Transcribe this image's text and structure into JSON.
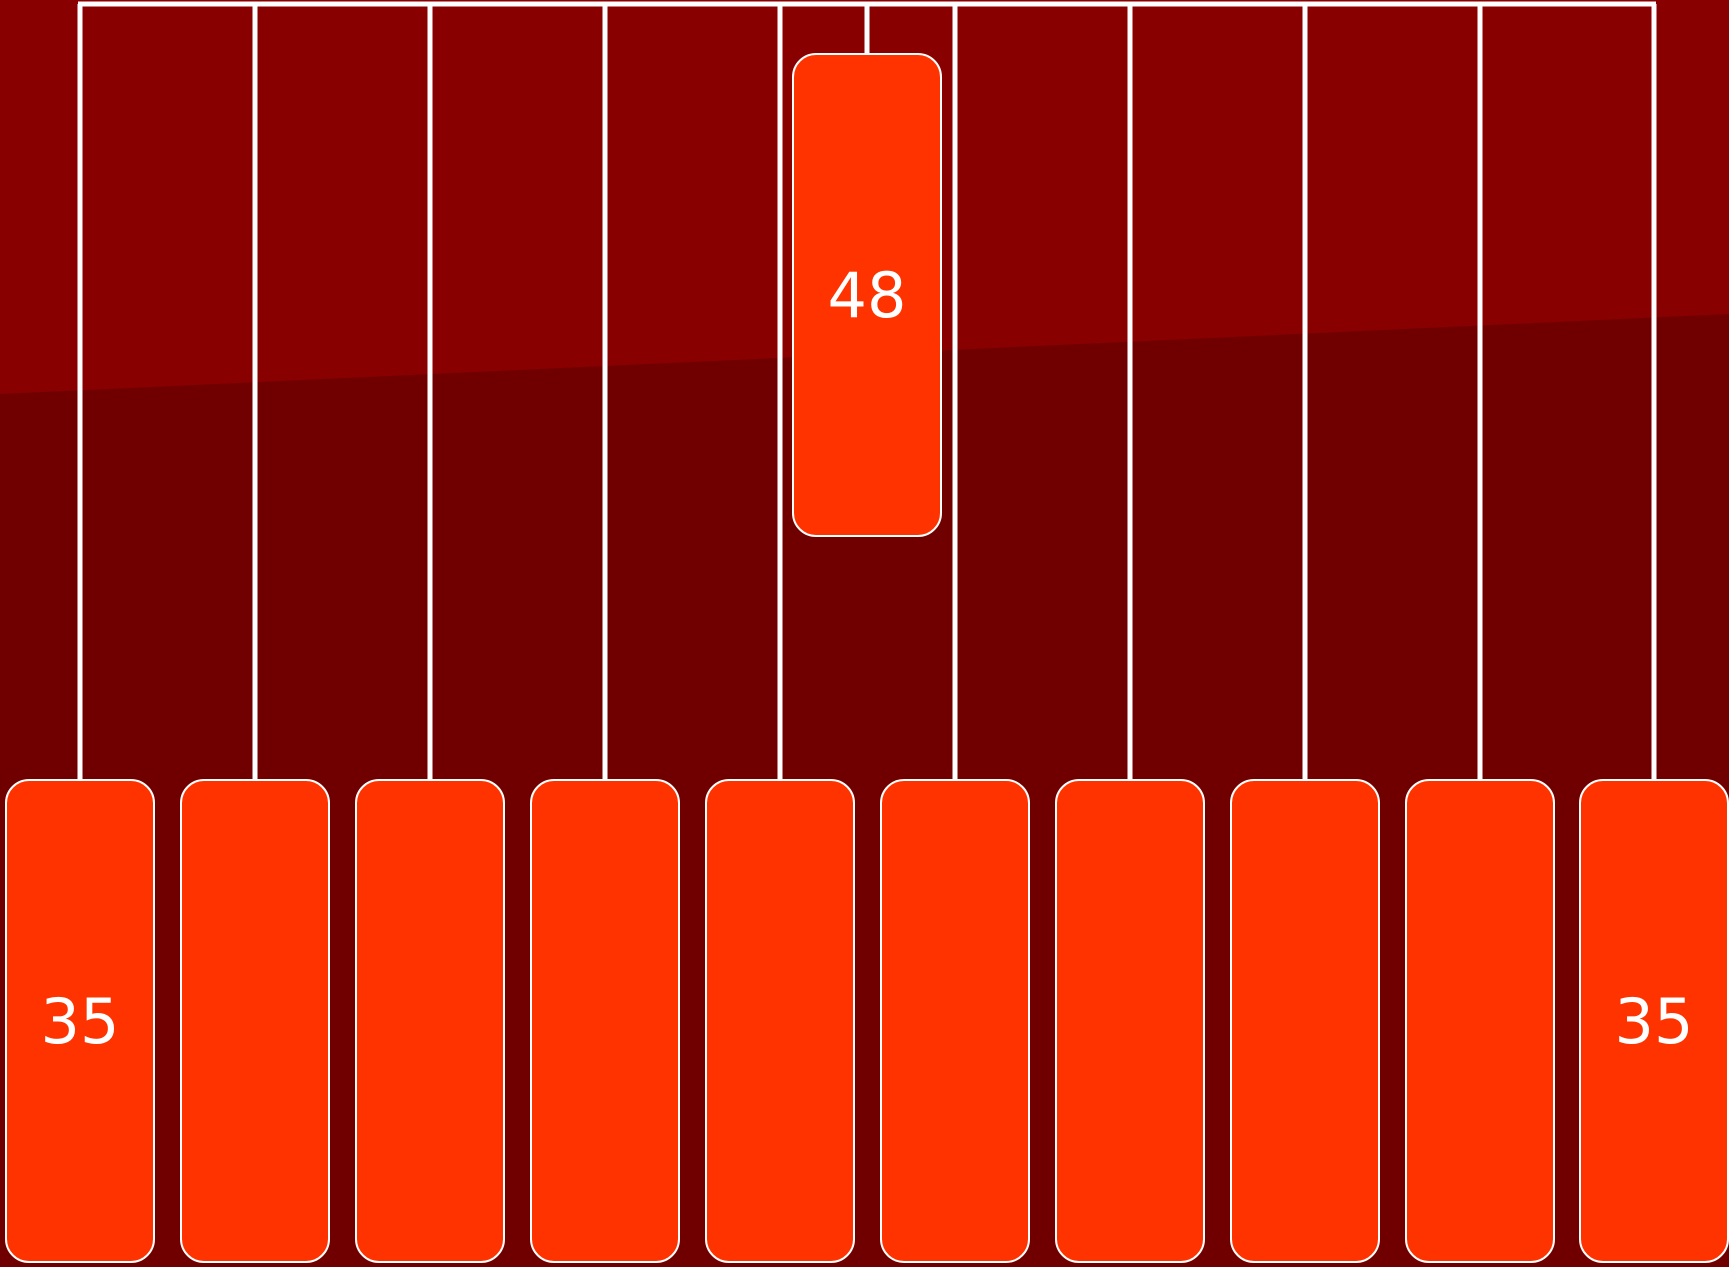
{
  "colors": {
    "background": "#700000",
    "background_band": "#880000",
    "node_fill": "#ff3300",
    "node_border": "#ffffff",
    "edge": "#ffffff"
  },
  "nodes": [
    {
      "id": "top",
      "label": "48"
    },
    {
      "id": "b1",
      "label": "35"
    },
    {
      "id": "b2",
      "label": ""
    },
    {
      "id": "b3",
      "label": ""
    },
    {
      "id": "b4",
      "label": ""
    },
    {
      "id": "b5",
      "label": ""
    },
    {
      "id": "b6",
      "label": ""
    },
    {
      "id": "b7",
      "label": ""
    },
    {
      "id": "b8",
      "label": ""
    },
    {
      "id": "b9",
      "label": ""
    },
    {
      "id": "b10",
      "label": "35"
    }
  ]
}
